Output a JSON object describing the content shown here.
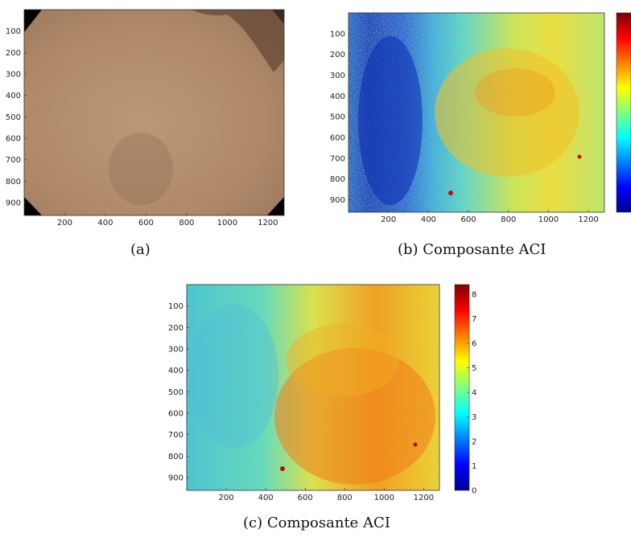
{
  "figure": {
    "panels": [
      {
        "id": "a",
        "caption": "(a)",
        "kind": "photo",
        "x_ticks": [
          "200",
          "400",
          "600",
          "800",
          "1000",
          "1200"
        ],
        "y_ticks": [
          "100",
          "200",
          "300",
          "400",
          "500",
          "600",
          "700",
          "800",
          "900"
        ],
        "colors": {
          "skin": "#b58c6b",
          "skin_dark": "#8e6a4e",
          "mask": "#000000"
        }
      },
      {
        "id": "b",
        "caption": "(b)  Composante ACI",
        "kind": "heatmap",
        "x_ticks": [
          "200",
          "400",
          "600",
          "800",
          "1000",
          "1200"
        ],
        "y_ticks": [
          "100",
          "200",
          "300",
          "400",
          "500",
          "600",
          "700",
          "800",
          "900"
        ],
        "colorbar_ticks": []
      },
      {
        "id": "c",
        "caption": "(c)  Composante ACI",
        "kind": "heatmap",
        "x_ticks": [
          "200",
          "400",
          "600",
          "800",
          "1000",
          "1200"
        ],
        "y_ticks": [
          "100",
          "200",
          "300",
          "400",
          "500",
          "600",
          "700",
          "800",
          "900"
        ],
        "colorbar_ticks": [
          "0",
          "1",
          "2",
          "3",
          "4",
          "5",
          "6",
          "7",
          "8"
        ]
      }
    ],
    "colormap": "jet"
  },
  "chart_data": [
    {
      "type": "heatmap",
      "title": "",
      "xlabel": "",
      "ylabel": "",
      "xlim": [
        0,
        1280
      ],
      "ylim": [
        0,
        960
      ],
      "x_ticks": [
        200,
        400,
        600,
        800,
        1000,
        1200
      ],
      "y_ticks": [
        100,
        200,
        300,
        400,
        500,
        600,
        700,
        800,
        900
      ],
      "colorbar": "jet"
    },
    {
      "type": "heatmap",
      "title": "",
      "xlabel": "",
      "ylabel": "",
      "xlim": [
        0,
        1280
      ],
      "ylim": [
        0,
        960
      ],
      "x_ticks": [
        200,
        400,
        600,
        800,
        1000,
        1200
      ],
      "y_ticks": [
        100,
        200,
        300,
        400,
        500,
        600,
        700,
        800,
        900
      ],
      "colorbar": "jet",
      "colorbar_range": [
        0,
        8.4
      ],
      "colorbar_ticks": [
        0,
        1,
        2,
        3,
        4,
        5,
        6,
        7,
        8
      ]
    }
  ]
}
